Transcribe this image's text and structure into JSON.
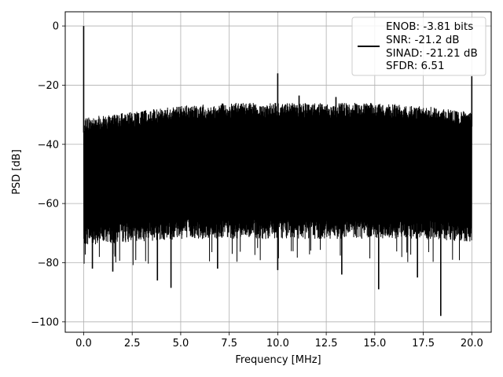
{
  "chart_data": {
    "type": "line",
    "title": "",
    "xlabel": "Frequency [MHz]",
    "ylabel": "PSD [dB]",
    "xlim": [
      -0.95,
      21.0
    ],
    "ylim": [
      -103.5,
      4.8
    ],
    "x_ticks": [
      0.0,
      2.5,
      5.0,
      7.5,
      10.0,
      12.5,
      15.0,
      17.5,
      20.0
    ],
    "x_tick_labels": [
      "0.0",
      "2.5",
      "5.0",
      "7.5",
      "10.0",
      "12.5",
      "15.0",
      "17.5",
      "20.0"
    ],
    "y_ticks": [
      0,
      -20,
      -40,
      -60,
      -80,
      -100
    ],
    "y_tick_labels": [
      "0",
      "−20",
      "−40",
      "−60",
      "−80",
      "−100"
    ],
    "grid": true,
    "line_color": "#000000",
    "legend": {
      "placement": "upper-right",
      "entries": [
        "ENOB: -3.81 bits",
        "SNR: -21.2 dB",
        "SINAD: -21.21 dB",
        "SFDR: 6.51"
      ]
    },
    "series": [
      {
        "noise_floor": {
          "x_range": [
            0.0,
            20.0
          ],
          "upper_envelope": [
            [
              0.0,
              -31
            ],
            [
              2.5,
              -29
            ],
            [
              5.0,
              -27
            ],
            [
              7.5,
              -26
            ],
            [
              10.0,
              -26
            ],
            [
              12.5,
              -26
            ],
            [
              15.0,
              -26
            ],
            [
              17.5,
              -27
            ],
            [
              20.0,
              -29
            ]
          ],
          "lower_envelope": [
            [
              0.0,
              -74
            ],
            [
              2.5,
              -73
            ],
            [
              5.0,
              -72
            ],
            [
              7.5,
              -72
            ],
            [
              10.0,
              -72
            ],
            [
              12.5,
              -72
            ],
            [
              15.0,
              -72
            ],
            [
              17.5,
              -72
            ],
            [
              20.0,
              -73
            ]
          ]
        },
        "peaks": [
          {
            "x": 0.0,
            "y": 0.0
          },
          {
            "x": 10.0,
            "y": -16.0
          },
          {
            "x": 11.1,
            "y": -23.5
          },
          {
            "x": 13.0,
            "y": -24.0
          },
          {
            "x": 20.0,
            "y": -17.0
          }
        ],
        "dips": [
          {
            "x": 0.45,
            "y": -82.0
          },
          {
            "x": 1.5,
            "y": -83.0
          },
          {
            "x": 3.8,
            "y": -86.0
          },
          {
            "x": 4.5,
            "y": -88.5
          },
          {
            "x": 6.9,
            "y": -82.0
          },
          {
            "x": 10.0,
            "y": -82.5
          },
          {
            "x": 13.3,
            "y": -84.0
          },
          {
            "x": 15.2,
            "y": -89.0
          },
          {
            "x": 17.2,
            "y": -85.0
          },
          {
            "x": 18.4,
            "y": -98.0
          }
        ]
      }
    ]
  }
}
